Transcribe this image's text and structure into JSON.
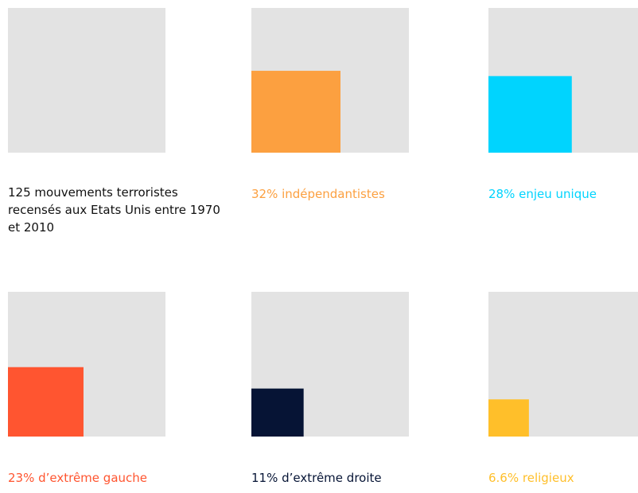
{
  "chart_data": {
    "type": "area_squares",
    "title": "125 mouvements terroristes recensés aux Etats Unis entre 1970 et 2010",
    "categories": [
      "indépendantistes",
      "enjeu unique",
      "d'extrême gauche",
      "d'extrême droite",
      "religieux"
    ],
    "values": [
      32,
      28,
      23,
      11,
      6.6
    ],
    "value_labels": [
      "32% indépendantistes",
      "28% enjeu unique",
      "23% d’extrême gauche",
      "11% d’extrême droite",
      "6.6% religieux"
    ],
    "colors": [
      "#fca040",
      "#00d4fe",
      "#ff5530",
      "#061435",
      "#ffbf2a"
    ],
    "ylim": [
      0,
      100
    ]
  }
}
